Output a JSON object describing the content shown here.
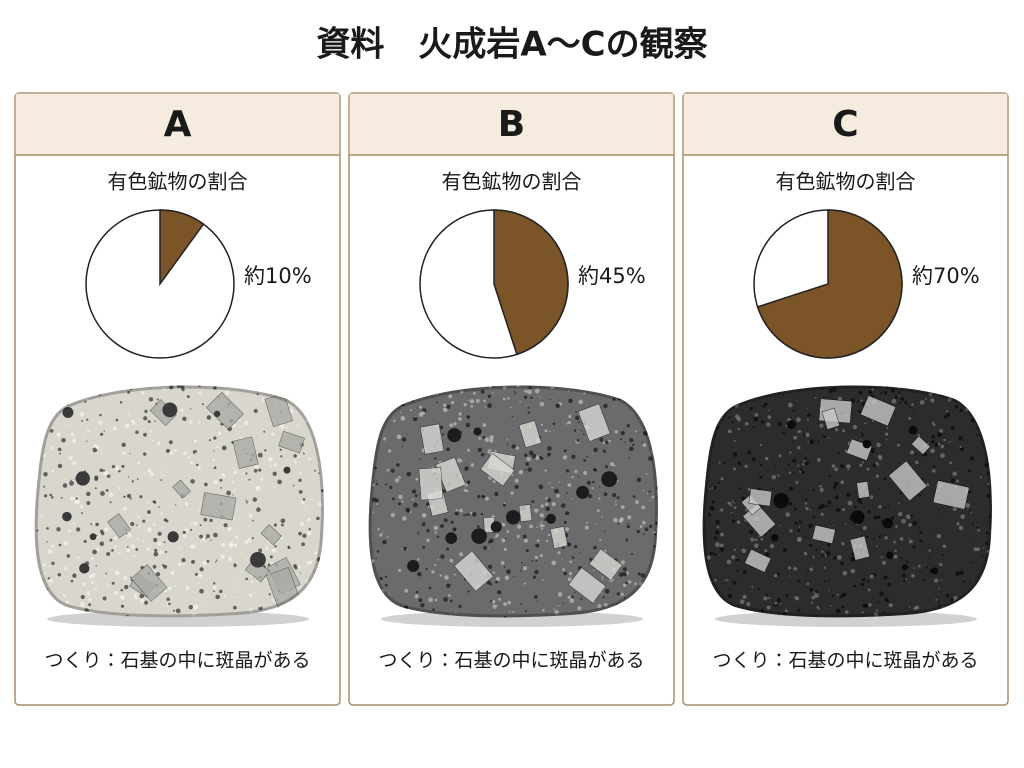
{
  "title": "資料　火成岩A〜Cの観察",
  "panels": [
    {
      "label": "A",
      "pie_title": "有色鉱物の割合",
      "value": 10,
      "value_label": "約10%",
      "description": "つくり：石基の中に斑晶がある"
    },
    {
      "label": "B",
      "pie_title": "有色鉱物の割合",
      "value": 45,
      "value_label": "約45%",
      "description": "つくり：石基の中に斑晶がある"
    },
    {
      "label": "C",
      "pie_title": "有色鉱物の割合",
      "value": 70,
      "value_label": "約70%",
      "description": "つくり：石基の中に斑晶がある"
    }
  ]
}
